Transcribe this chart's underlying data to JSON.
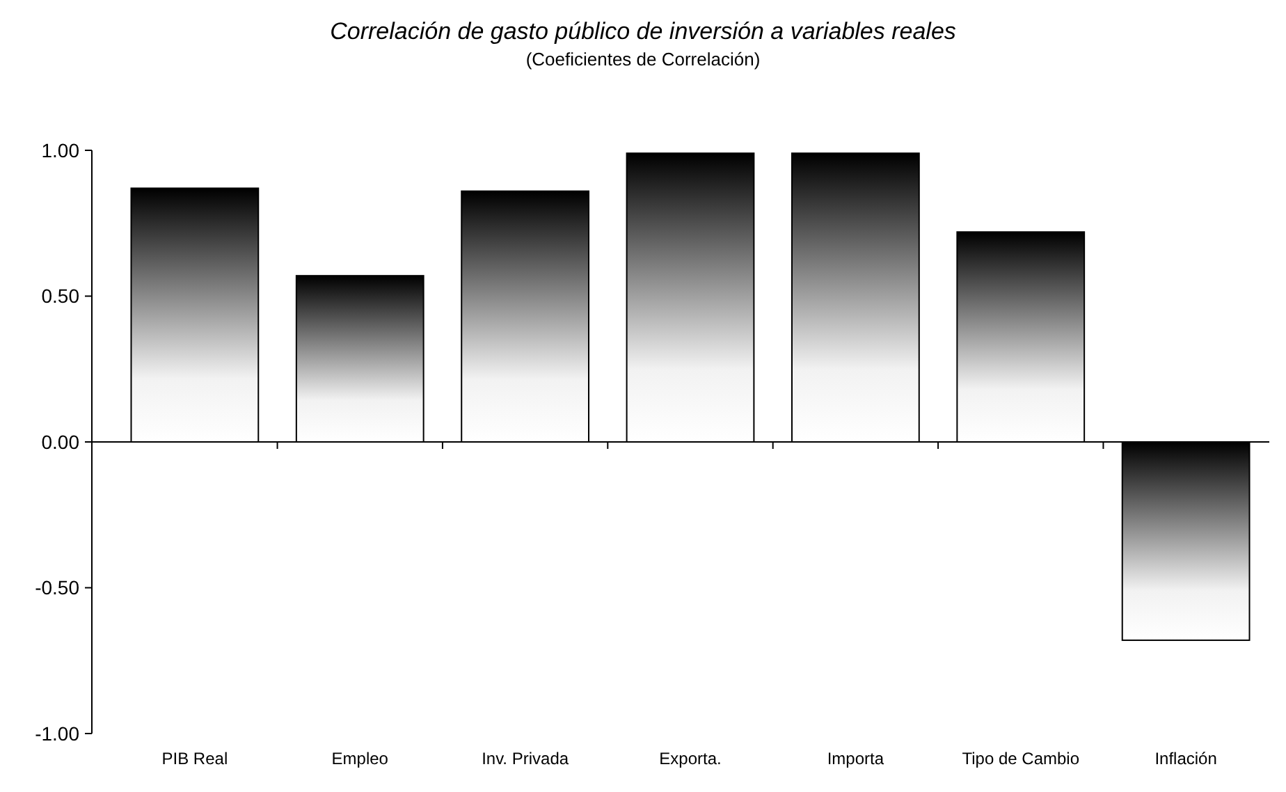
{
  "chart_data": {
    "type": "bar",
    "title": "Correlación de gasto público de inversión a variables reales",
    "subtitle": "(Coeficientes de Correlación)",
    "categories": [
      "PIB Real",
      "Empleo",
      "Inv. Privada",
      "Exporta.",
      "Importa",
      "Tipo de Cambio",
      "Inflación"
    ],
    "values": [
      0.87,
      0.57,
      0.86,
      0.99,
      0.99,
      0.72,
      -0.68
    ],
    "color": "#000000",
    "ylim": [
      -1,
      1
    ],
    "yticks": [
      {
        "value": 1,
        "label": "1.00"
      },
      {
        "value": 0.5,
        "label": "0.50"
      },
      {
        "value": 0,
        "label": "0.00"
      },
      {
        "value": -0.5,
        "label": "-0.50"
      },
      {
        "value": -1,
        "label": "-1.00"
      }
    ]
  }
}
